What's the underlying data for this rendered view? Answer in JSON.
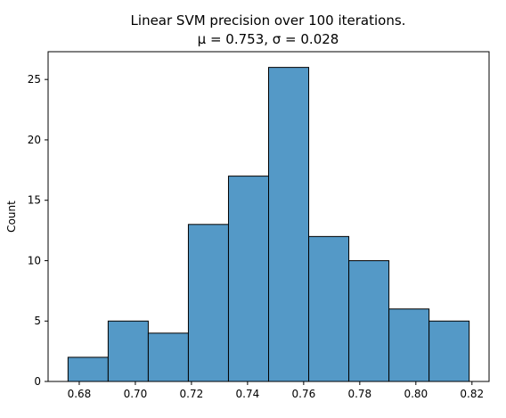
{
  "chart_data": {
    "type": "bar",
    "subtype": "histogram",
    "title_line1": "Linear SVM precision over 100 iterations.",
    "title_line2": "μ = 0.753, σ = 0.028",
    "xlabel": "",
    "ylabel": "Count",
    "bin_edges": [
      0.676,
      0.6903,
      0.7046,
      0.7189,
      0.7332,
      0.7475,
      0.7618,
      0.7761,
      0.7904,
      0.8047,
      0.819
    ],
    "counts": [
      2,
      5,
      4,
      13,
      17,
      26,
      12,
      10,
      6,
      5
    ],
    "xlim": [
      0.6689,
      0.8261
    ],
    "ylim": [
      0,
      27.3
    ],
    "x_ticks": [
      0.68,
      0.7,
      0.72,
      0.74,
      0.76,
      0.78,
      0.8,
      0.82
    ],
    "x_tick_labels": [
      "0.68",
      "0.70",
      "0.72",
      "0.74",
      "0.76",
      "0.78",
      "0.80",
      "0.82"
    ],
    "y_ticks": [
      0,
      5,
      10,
      15,
      20,
      25
    ],
    "y_tick_labels": [
      "0",
      "5",
      "10",
      "15",
      "20",
      "25"
    ],
    "bar_color": "#5499c7",
    "bar_edge_color": "#000000",
    "grid": false
  }
}
